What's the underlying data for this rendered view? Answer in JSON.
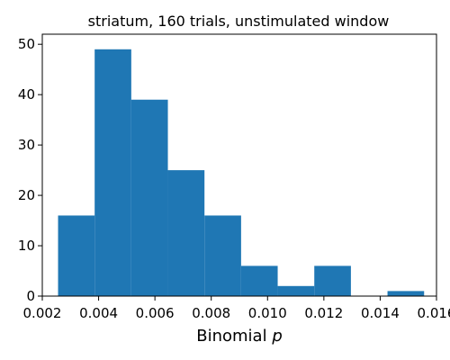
{
  "chart_data": {
    "type": "histogram",
    "title": "striatum, 160 trials, unstimulated window",
    "xlabel": "Binomial",
    "xlabel_variable": "p",
    "ylabel": "",
    "xlim": [
      0.002,
      0.016
    ],
    "ylim": [
      0,
      52
    ],
    "xticks": [
      "0.002",
      "0.004",
      "0.006",
      "0.008",
      "0.010",
      "0.012",
      "0.014",
      "0.016"
    ],
    "xtick_values": [
      0.002,
      0.004,
      0.006,
      0.008,
      0.01,
      0.012,
      0.014,
      0.016
    ],
    "yticks": [
      "0",
      "10",
      "20",
      "30",
      "40",
      "50"
    ],
    "ytick_values": [
      0,
      10,
      20,
      30,
      40,
      50
    ],
    "bin_edges": [
      0.00256,
      0.00386,
      0.00516,
      0.00646,
      0.00776,
      0.00906,
      0.01036,
      0.01166,
      0.01296,
      0.01426,
      0.01556
    ],
    "counts": [
      16,
      49,
      39,
      25,
      16,
      6,
      2,
      6,
      0,
      1
    ],
    "bar_color": "#1f77b4",
    "grid": false,
    "legend": "none"
  }
}
